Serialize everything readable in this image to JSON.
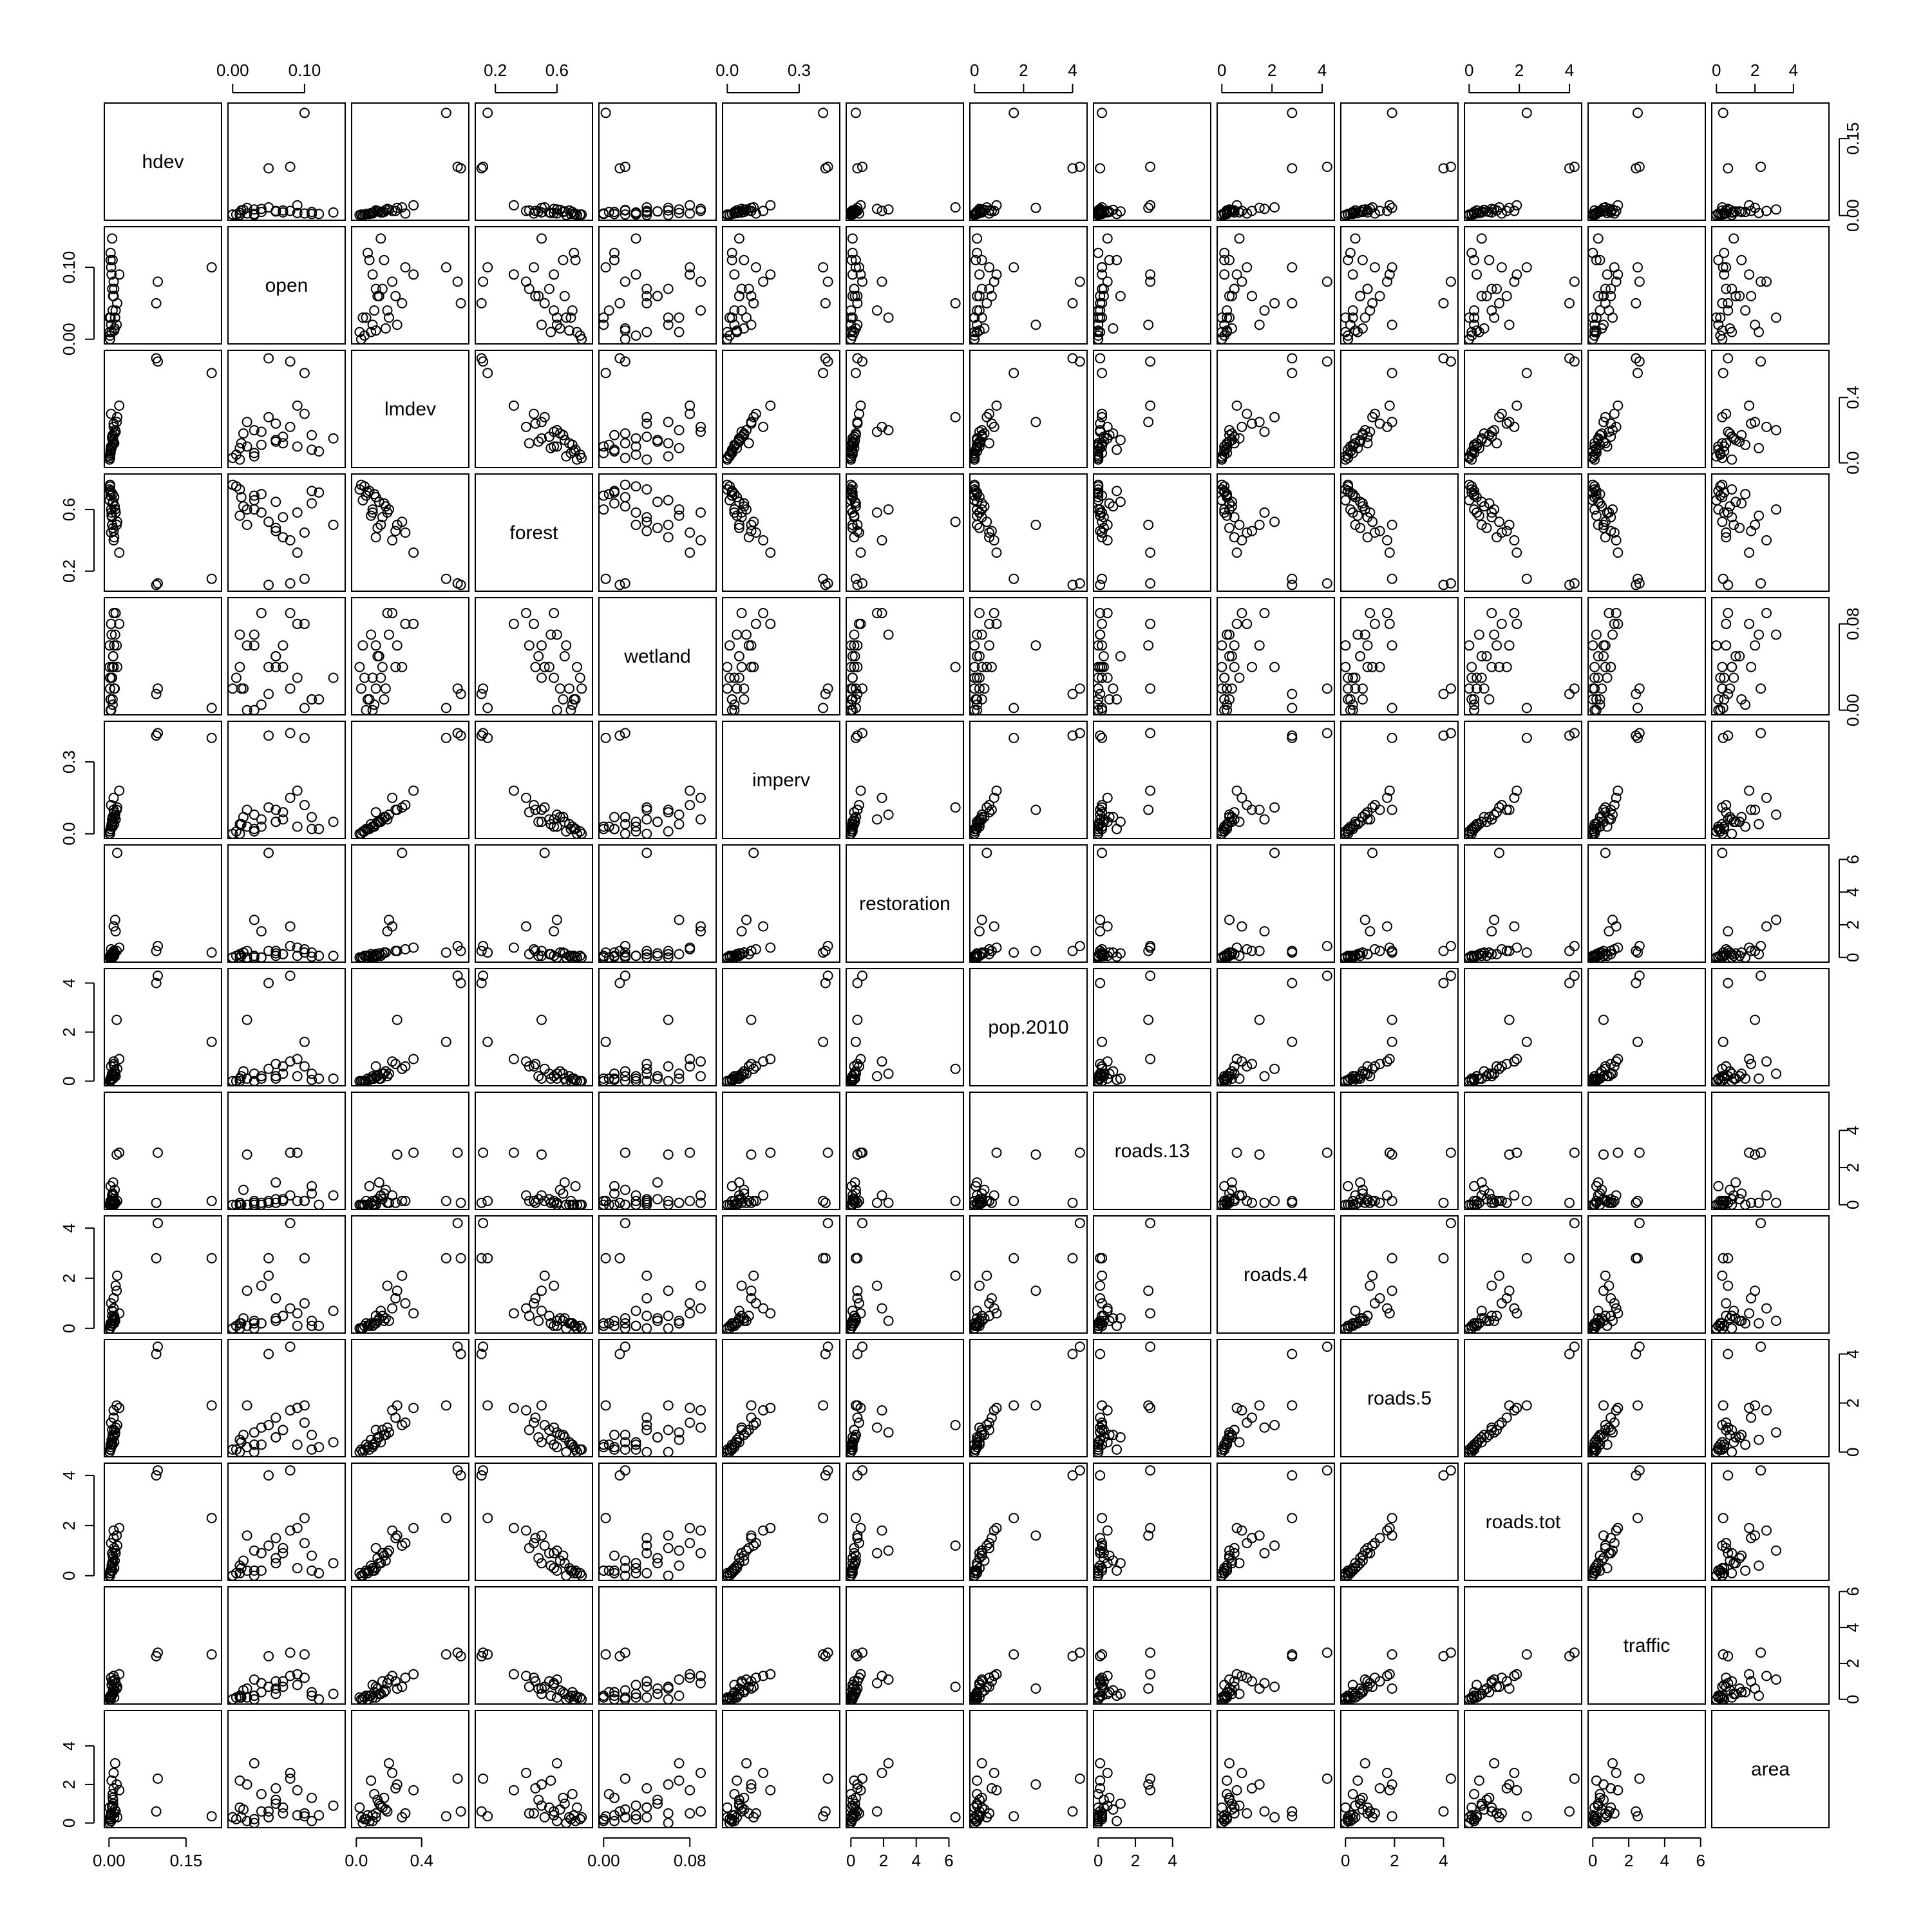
{
  "chart_data": {
    "type": "scatter-matrix",
    "variables": [
      {
        "name": "hdev",
        "lim": [
          0,
          0.21
        ],
        "ticks": [
          0.0,
          0.15
        ],
        "tick_labels": [
          "0.00",
          "0.15"
        ]
      },
      {
        "name": "open",
        "lim": [
          0,
          0.15
        ],
        "ticks": [
          0.0,
          0.1
        ],
        "tick_labels": [
          "0.00",
          "0.10"
        ]
      },
      {
        "name": "lmdev",
        "lim": [
          0,
          0.66
        ],
        "ticks": [
          0.0,
          0.4
        ],
        "tick_labels": [
          "0.0",
          "0.4"
        ]
      },
      {
        "name": "forest",
        "lim": [
          0.1,
          0.8
        ],
        "ticks": [
          0.2,
          0.6
        ],
        "tick_labels": [
          "0.2",
          "0.6"
        ]
      },
      {
        "name": "wetland",
        "lim": [
          0,
          0.1
        ],
        "ticks": [
          0.0,
          0.08
        ],
        "tick_labels": [
          "0.00",
          "0.08"
        ]
      },
      {
        "name": "imperv",
        "lim": [
          0,
          0.45
        ],
        "ticks": [
          0.0,
          0.3
        ],
        "tick_labels": [
          "0.0",
          "0.3"
        ]
      },
      {
        "name": "restoration",
        "lim": [
          0,
          6.6
        ],
        "ticks": [
          0,
          2,
          4,
          6
        ],
        "tick_labels": [
          "0",
          "2",
          "4",
          "6"
        ]
      },
      {
        "name": "pop.2010",
        "lim": [
          0,
          4.4
        ],
        "ticks": [
          0,
          2,
          4
        ],
        "tick_labels": [
          "0",
          "2",
          "4"
        ]
      },
      {
        "name": "roads.13",
        "lim": [
          0,
          5.8
        ],
        "ticks": [
          0,
          2,
          4
        ],
        "tick_labels": [
          "0",
          "2",
          "4"
        ]
      },
      {
        "name": "roads.4",
        "lim": [
          0,
          4.3
        ],
        "ticks": [
          0,
          2,
          4
        ],
        "tick_labels": [
          "0",
          "2",
          "4"
        ]
      },
      {
        "name": "roads.5",
        "lim": [
          0,
          4.4
        ],
        "ticks": [
          0,
          2,
          4
        ],
        "tick_labels": [
          "0",
          "2",
          "4"
        ]
      },
      {
        "name": "roads.tot",
        "lim": [
          0,
          4.3
        ],
        "ticks": [
          0,
          2,
          4
        ],
        "tick_labels": [
          "0",
          "2",
          "4"
        ]
      },
      {
        "name": "traffic",
        "lim": [
          0,
          6.0
        ],
        "ticks": [
          0,
          2,
          4,
          6
        ],
        "tick_labels": [
          "0",
          "2",
          "4",
          "6"
        ]
      },
      {
        "name": "area",
        "lim": [
          0,
          5.6
        ],
        "ticks": [
          0,
          2,
          4
        ],
        "tick_labels": [
          "0",
          "2",
          "4"
        ]
      }
    ],
    "observations": [
      [
        0.2,
        0.1,
        0.55,
        0.15,
        0.002,
        0.4,
        0.3,
        1.6,
        0.2,
        2.8,
        1.9,
        2.3,
        2.5,
        0.35
      ],
      [
        0.095,
        0.08,
        0.62,
        0.12,
        0.02,
        0.42,
        0.7,
        4.3,
        2.8,
        4.2,
        4.3,
        4.2,
        2.6,
        2.3
      ],
      [
        0.092,
        0.05,
        0.64,
        0.11,
        0.015,
        0.41,
        0.4,
        4.0,
        0.1,
        2.8,
        4.0,
        4.0,
        2.4,
        0.6
      ],
      [
        0.01,
        0.012,
        0.12,
        0.68,
        0.02,
        0.04,
        0.1,
        0.2,
        0.0,
        0.2,
        0.4,
        0.3,
        0.1,
        0.3
      ],
      [
        0.008,
        0.06,
        0.14,
        0.65,
        0.05,
        0.05,
        0.25,
        0.1,
        1.2,
        0.4,
        0.6,
        0.5,
        0.3,
        1.0
      ],
      [
        0.005,
        0.09,
        0.1,
        0.58,
        0.03,
        0.03,
        0.1,
        0.2,
        0.2,
        0.1,
        0.3,
        0.3,
        0.8,
        0.4
      ],
      [
        0.012,
        0.03,
        0.2,
        0.6,
        0.07,
        0.08,
        2.3,
        0.3,
        0.1,
        0.3,
        0.8,
        1.0,
        1.1,
        3.1
      ],
      [
        0.003,
        0.11,
        0.08,
        0.72,
        0.01,
        0.02,
        0.05,
        0.05,
        1.0,
        0.1,
        0.1,
        0.2,
        0.2,
        0.1
      ],
      [
        0.015,
        0.02,
        0.25,
        0.5,
        0.06,
        0.1,
        0.4,
        2.5,
        2.7,
        1.5,
        1.9,
        1.6,
        0.6,
        2.0
      ],
      [
        0.006,
        0.07,
        0.16,
        0.55,
        0.04,
        0.06,
        0.2,
        0.3,
        0.3,
        0.5,
        0.9,
        0.9,
        1.0,
        0.8
      ],
      [
        0.004,
        0.1,
        0.3,
        0.45,
        0.08,
        0.12,
        0.5,
        0.6,
        0.2,
        1.0,
        1.2,
        1.3,
        1.2,
        0.5
      ],
      [
        0.007,
        0.04,
        0.11,
        0.7,
        0.005,
        0.03,
        0.0,
        0.1,
        0.0,
        0.2,
        0.3,
        0.2,
        0.4,
        1.5
      ],
      [
        0.002,
        0.005,
        0.05,
        0.75,
        0.03,
        0.01,
        0.1,
        0.0,
        0.0,
        0.1,
        0.1,
        0.1,
        0.1,
        0.2
      ],
      [
        0.009,
        0.08,
        0.22,
        0.4,
        0.09,
        0.15,
        1.9,
        0.8,
        0.5,
        0.8,
        1.7,
        1.8,
        1.3,
        2.6
      ],
      [
        0.011,
        0.015,
        0.18,
        0.62,
        0.02,
        0.07,
        0.3,
        0.4,
        0.8,
        0.4,
        0.7,
        0.6,
        0.5,
        0.7
      ],
      [
        0.003,
        0.12,
        0.07,
        0.71,
        0.01,
        0.02,
        0.1,
        0.1,
        0.0,
        0.1,
        0.2,
        0.1,
        0.0,
        0.4
      ],
      [
        0.016,
        0.05,
        0.28,
        0.52,
        0.04,
        0.11,
        6.4,
        0.5,
        0.2,
        2.1,
        1.1,
        1.2,
        0.7,
        0.3
      ],
      [
        0.001,
        0.03,
        0.04,
        0.66,
        0.06,
        0.01,
        0.0,
        0.0,
        0.0,
        0.0,
        0.0,
        0.0,
        0.0,
        0.0
      ],
      [
        0.005,
        0.01,
        0.09,
        0.56,
        0.07,
        0.04,
        0.2,
        0.1,
        0.1,
        0.2,
        0.5,
        0.4,
        0.2,
        2.2
      ],
      [
        0.008,
        0.06,
        0.13,
        0.48,
        0.05,
        0.05,
        0.1,
        0.2,
        0.3,
        0.3,
        0.6,
        0.7,
        0.6,
        1.2
      ],
      [
        0.02,
        0.09,
        0.35,
        0.32,
        0.08,
        0.18,
        0.6,
        0.9,
        2.8,
        0.6,
        1.8,
        1.9,
        1.4,
        1.7
      ],
      [
        0.004,
        0.02,
        0.1,
        0.6,
        0.0,
        0.03,
        0.0,
        0.1,
        0.0,
        0.1,
        0.2,
        0.2,
        0.1,
        0.1
      ],
      [
        0.006,
        0.14,
        0.15,
        0.5,
        0.03,
        0.05,
        0.1,
        0.1,
        0.5,
        0.7,
        0.4,
        0.5,
        0.3,
        0.9
      ],
      [
        0.002,
        0.0,
        0.03,
        0.76,
        0.02,
        0.0,
        0.0,
        0.0,
        0.0,
        0.0,
        0.1,
        0.0,
        0.0,
        0.3
      ],
      [
        0.013,
        0.04,
        0.19,
        0.58,
        0.09,
        0.06,
        1.6,
        0.2,
        0.1,
        1.7,
        1.0,
        0.9,
        0.9,
        0.6
      ],
      [
        0.007,
        0.11,
        0.17,
        0.64,
        0.01,
        0.07,
        0.3,
        0.3,
        0.6,
        0.3,
        0.7,
        0.8,
        0.4,
        1.3
      ],
      [
        0.01,
        0.07,
        0.12,
        0.42,
        0.06,
        0.09,
        0.2,
        0.6,
        0.2,
        0.5,
        0.9,
        1.1,
        0.7,
        0.5
      ],
      [
        0.001,
        0.01,
        0.02,
        0.73,
        0.04,
        0.0,
        0.0,
        0.0,
        0.0,
        0.0,
        0.0,
        0.1,
        0.1,
        0.8
      ],
      [
        0.003,
        0.03,
        0.06,
        0.69,
        0.0,
        0.02,
        0.1,
        0.0,
        0.2,
        0.2,
        0.3,
        0.2,
        0.2,
        0.2
      ],
      [
        0.009,
        0.06,
        0.24,
        0.46,
        0.04,
        0.1,
        0.4,
        0.7,
        0.1,
        1.2,
        1.4,
        1.5,
        1.0,
        1.8
      ]
    ]
  }
}
